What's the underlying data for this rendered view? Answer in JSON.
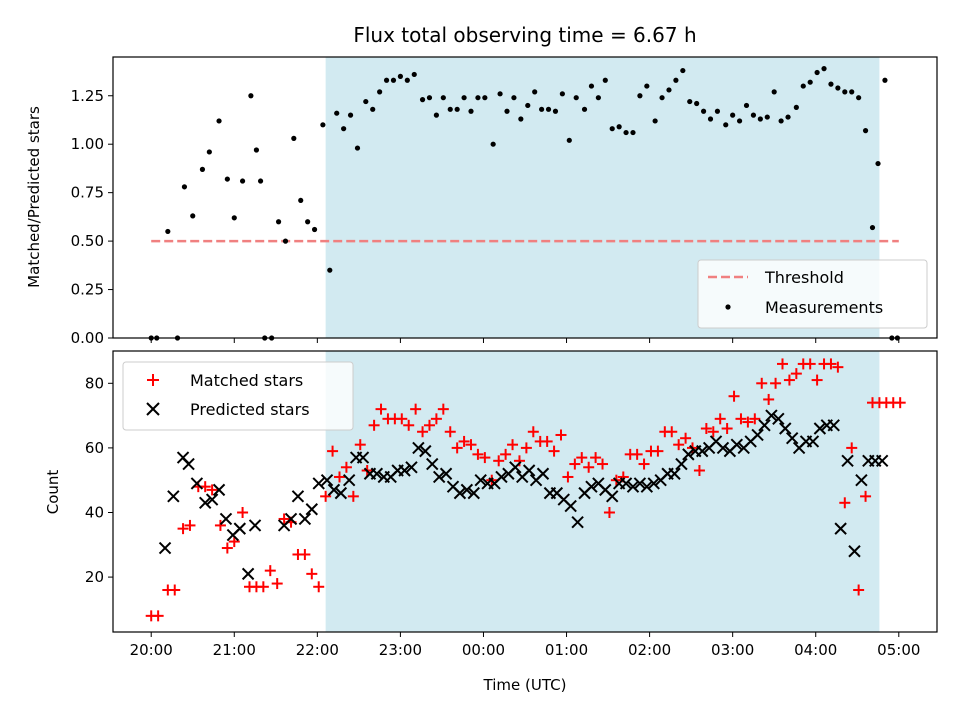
{
  "title": "Flux total observing time = 6.67 h",
  "colors": {
    "threshold": "#f08080",
    "measurements": "#000000",
    "matched": "#ff0000",
    "predicted": "#000000",
    "span": "#add8e6"
  },
  "chart_data": [
    {
      "type": "scatter",
      "ylabel": "Matched/Predicted stars",
      "xlabel": "",
      "ylim": [
        0,
        1.45
      ],
      "x_tick_labels": [
        "",
        "",
        "",
        "",
        "",
        "",
        "",
        "",
        "",
        ""
      ],
      "y_ticks": [
        "0.00",
        "0.25",
        "0.50",
        "0.75",
        "1.00",
        "1.25"
      ],
      "observing_span": [
        "22:06",
        "04:46"
      ],
      "legend": {
        "placement": "lower right",
        "entries": [
          "Threshold",
          "Measurements"
        ]
      },
      "series": [
        {
          "name": "Threshold",
          "kind": "dashed-line",
          "x": [
            "20:00",
            "05:00"
          ],
          "y": [
            0.5,
            0.5
          ]
        },
        {
          "name": "Measurements",
          "kind": "points",
          "x": [
            "20:00",
            "20:04",
            "20:12",
            "20:19",
            "20:24",
            "20:30",
            "20:37",
            "20:42",
            "20:49",
            "20:55",
            "21:00",
            "21:06",
            "21:12",
            "21:16",
            "21:19",
            "21:22",
            "21:27",
            "21:32",
            "21:37",
            "21:43",
            "21:48",
            "21:53",
            "21:58",
            "22:04",
            "22:09",
            "22:14",
            "22:19",
            "22:24",
            "22:29",
            "22:35",
            "22:40",
            "22:45",
            "22:50",
            "22:55",
            "23:00",
            "23:05",
            "23:10",
            "23:16",
            "23:21",
            "23:26",
            "23:31",
            "23:36",
            "23:41",
            "23:46",
            "23:51",
            "23:56",
            "00:01",
            "00:07",
            "00:12",
            "00:17",
            "00:22",
            "00:27",
            "00:32",
            "00:37",
            "00:42",
            "00:47",
            "00:52",
            "00:57",
            "01:02",
            "01:07",
            "01:13",
            "01:18",
            "01:23",
            "01:28",
            "01:33",
            "01:38",
            "01:43",
            "01:48",
            "01:53",
            "01:58",
            "02:04",
            "02:09",
            "02:14",
            "02:19",
            "02:24",
            "02:29",
            "02:34",
            "02:39",
            "02:44",
            "02:49",
            "02:55",
            "03:00",
            "03:05",
            "03:10",
            "03:15",
            "03:20",
            "03:25",
            "03:30",
            "03:35",
            "03:40",
            "03:46",
            "03:51",
            "03:56",
            "04:01",
            "04:06",
            "04:11",
            "04:16",
            "04:21",
            "04:26",
            "04:31",
            "04:36",
            "04:41",
            "04:45",
            "04:50",
            "04:55",
            "04:59"
          ],
          "y": [
            0.0,
            0.0,
            0.55,
            0.0,
            0.78,
            0.63,
            0.87,
            0.96,
            1.12,
            0.82,
            0.62,
            0.81,
            1.25,
            0.97,
            0.81,
            0.0,
            0.0,
            0.6,
            0.5,
            1.03,
            0.71,
            0.6,
            0.56,
            1.1,
            0.35,
            1.16,
            1.08,
            1.15,
            0.98,
            1.22,
            1.18,
            1.27,
            1.33,
            1.33,
            1.35,
            1.33,
            1.36,
            1.23,
            1.24,
            1.15,
            1.24,
            1.18,
            1.18,
            1.24,
            1.17,
            1.24,
            1.24,
            1.0,
            1.26,
            1.17,
            1.24,
            1.13,
            1.2,
            1.27,
            1.18,
            1.18,
            1.17,
            1.26,
            1.02,
            1.24,
            1.18,
            1.3,
            1.24,
            1.33,
            1.08,
            1.09,
            1.06,
            1.06,
            1.25,
            1.3,
            1.12,
            1.24,
            1.28,
            1.33,
            1.38,
            1.22,
            1.21,
            1.17,
            1.13,
            1.17,
            1.1,
            1.15,
            1.12,
            1.2,
            1.15,
            1.13,
            1.14,
            1.27,
            1.12,
            1.14,
            1.19,
            1.3,
            1.32,
            1.37,
            1.39,
            1.31,
            1.29,
            1.27,
            1.27,
            1.24,
            1.07,
            0.57,
            0.9,
            1.33,
            0.0,
            0.0
          ]
        }
      ]
    },
    {
      "type": "scatter",
      "ylabel": "Count",
      "xlabel": "Time (UTC)",
      "ylim": [
        3,
        90
      ],
      "x_tick_labels": [
        "20:00",
        "21:00",
        "22:00",
        "23:00",
        "00:00",
        "01:00",
        "02:00",
        "03:00",
        "04:00",
        "05:00"
      ],
      "y_ticks": [
        "20",
        "40",
        "60",
        "80"
      ],
      "observing_span": [
        "22:06",
        "04:46"
      ],
      "legend": {
        "placement": "upper left",
        "entries": [
          "Matched stars",
          "Predicted stars"
        ]
      },
      "series": [
        {
          "name": "Matched stars",
          "marker": "+",
          "x": [
            "20:00",
            "20:05",
            "20:12",
            "20:17",
            "20:23",
            "20:28",
            "20:34",
            "20:39",
            "20:44",
            "20:50",
            "20:55",
            "21:00",
            "21:06",
            "21:11",
            "21:16",
            "21:21",
            "21:26",
            "21:31",
            "21:36",
            "21:41",
            "21:46",
            "21:51",
            "21:56",
            "22:01",
            "22:06",
            "22:11",
            "22:16",
            "22:21",
            "22:26",
            "22:31",
            "22:36",
            "22:41",
            "22:46",
            "22:51",
            "22:56",
            "23:01",
            "23:06",
            "23:11",
            "23:16",
            "23:21",
            "23:26",
            "23:31",
            "23:36",
            "23:41",
            "23:46",
            "23:51",
            "23:56",
            "00:01",
            "00:06",
            "00:11",
            "00:16",
            "00:21",
            "00:26",
            "00:31",
            "00:36",
            "00:41",
            "00:46",
            "00:51",
            "00:56",
            "01:01",
            "01:06",
            "01:11",
            "01:16",
            "01:21",
            "01:26",
            "01:31",
            "01:36",
            "01:41",
            "01:46",
            "01:51",
            "01:56",
            "02:01",
            "02:06",
            "02:11",
            "02:16",
            "02:21",
            "02:26",
            "02:31",
            "02:36",
            "02:41",
            "02:46",
            "02:51",
            "02:56",
            "03:01",
            "03:06",
            "03:11",
            "03:16",
            "03:21",
            "03:26",
            "03:31",
            "03:36",
            "03:41",
            "03:46",
            "03:51",
            "03:56",
            "04:01",
            "04:06",
            "04:11",
            "04:16",
            "04:21",
            "04:26",
            "04:31",
            "04:36",
            "04:41",
            "04:46",
            "04:51",
            "04:56",
            "05:01"
          ],
          "y": [
            8,
            8,
            16,
            16,
            35,
            36,
            48,
            48,
            47,
            36,
            29,
            31,
            40,
            17,
            17,
            17,
            22,
            18,
            38,
            37,
            27,
            27,
            21,
            17,
            45,
            59,
            51,
            54,
            45,
            61,
            53,
            67,
            72,
            69,
            69,
            69,
            67,
            72,
            65,
            67,
            69,
            72,
            65,
            60,
            62,
            61,
            58,
            57,
            50,
            56,
            58,
            61,
            56,
            60,
            65,
            62,
            62,
            59,
            64,
            51,
            55,
            57,
            54,
            57,
            55,
            40,
            50,
            51,
            58,
            58,
            55,
            59,
            59,
            65,
            65,
            61,
            63,
            60,
            53,
            66,
            65,
            69,
            66,
            76,
            69,
            68,
            69,
            80,
            75,
            80,
            86,
            81,
            83,
            86,
            86,
            81,
            86,
            86,
            85,
            43,
            60,
            16,
            45,
            74,
            74,
            74,
            74,
            74
          ]
        },
        {
          "name": "Predicted stars",
          "marker": "x",
          "x": [
            "20:10",
            "20:16",
            "20:23",
            "20:27",
            "20:33",
            "20:39",
            "20:44",
            "20:49",
            "20:54",
            "20:59",
            "21:04",
            "21:10",
            "21:15",
            "21:36",
            "21:41",
            "21:46",
            "21:51",
            "21:56",
            "22:01",
            "22:07",
            "22:12",
            "22:17",
            "22:23",
            "22:28",
            "22:33",
            "22:38",
            "22:43",
            "22:48",
            "22:53",
            "22:58",
            "23:03",
            "23:08",
            "23:13",
            "23:18",
            "23:23",
            "23:28",
            "23:33",
            "23:38",
            "23:43",
            "23:48",
            "23:53",
            "23:58",
            "00:03",
            "00:08",
            "00:13",
            "00:18",
            "00:23",
            "00:28",
            "00:33",
            "00:38",
            "00:43",
            "00:48",
            "00:53",
            "00:58",
            "01:03",
            "01:08",
            "01:13",
            "01:18",
            "01:23",
            "01:28",
            "01:33",
            "01:38",
            "01:43",
            "01:48",
            "01:53",
            "01:58",
            "02:03",
            "02:08",
            "02:13",
            "02:18",
            "02:23",
            "02:28",
            "02:33",
            "02:38",
            "02:43",
            "02:48",
            "02:53",
            "02:58",
            "03:03",
            "03:08",
            "03:13",
            "03:18",
            "03:23",
            "03:28",
            "03:33",
            "03:38",
            "03:43",
            "03:48",
            "03:53",
            "03:58",
            "04:03",
            "04:08",
            "04:13",
            "04:18",
            "04:23",
            "04:28",
            "04:33",
            "04:38",
            "04:43",
            "04:48"
          ],
          "y": [
            29,
            45,
            57,
            55,
            49,
            43,
            44,
            47,
            38,
            33,
            35,
            21,
            36,
            36,
            38,
            45,
            38,
            41,
            49,
            50,
            47,
            46,
            50,
            57,
            57,
            52,
            52,
            51,
            51,
            53,
            53,
            54,
            60,
            59,
            55,
            51,
            52,
            48,
            46,
            47,
            46,
            50,
            49,
            49,
            51,
            52,
            54,
            51,
            53,
            50,
            52,
            46,
            46,
            44,
            42,
            37,
            46,
            48,
            49,
            47,
            45,
            49,
            49,
            48,
            49,
            48,
            49,
            50,
            52,
            52,
            55,
            58,
            59,
            59,
            60,
            62,
            60,
            59,
            61,
            60,
            62,
            64,
            67,
            70,
            69,
            66,
            63,
            60,
            62,
            62,
            66,
            67,
            67,
            35,
            56,
            28,
            50,
            56,
            56,
            56
          ]
        }
      ]
    }
  ]
}
